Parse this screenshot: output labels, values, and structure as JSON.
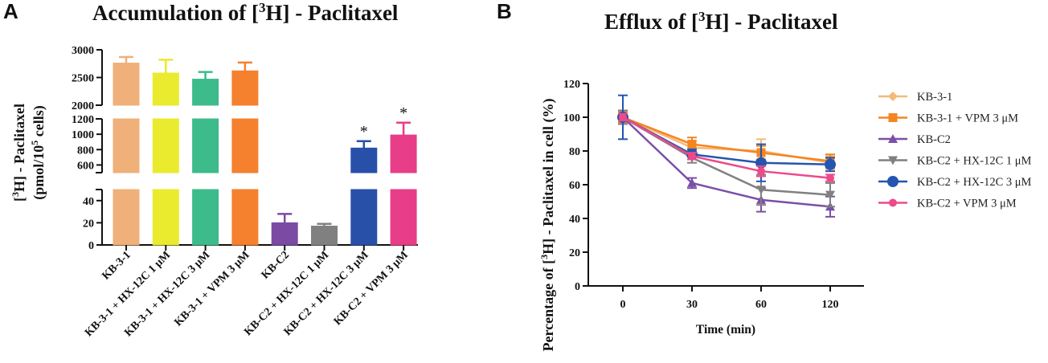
{
  "panel_a": {
    "letter": "A",
    "title_pre": "Accumulation of [",
    "title_sup": "3",
    "title_post": "H] - Paclitaxel"
  },
  "panel_b": {
    "letter": "B",
    "title_pre": "Efflux of [",
    "title_sup": "3",
    "title_post": "H] - Paclitaxel"
  },
  "chart_data": [
    {
      "type": "bar",
      "title": "Accumulation of [3H] - Paclitaxel",
      "ylabel_parts": [
        "[",
        "3",
        "H] - Paclitaxel",
        "(pmol/10",
        "5",
        " cells)"
      ],
      "y_segments": [
        {
          "range": [
            0,
            50
          ],
          "ticks": [
            0,
            20,
            40
          ]
        },
        {
          "range": [
            500,
            1200
          ],
          "ticks": [
            600,
            800,
            1000,
            1200
          ]
        },
        {
          "range": [
            2000,
            3000
          ],
          "ticks": [
            2000,
            2500,
            3000
          ]
        }
      ],
      "categories": [
        "KB-3-1",
        "KB-3-1 + HX-12C 1 μM",
        "KB-3-1 + HX-12C 3 μM",
        "KB-3-1 + VPM 3 μM",
        "KB-C2",
        "KB-C2 + HX-12C 1 μM",
        "KB-C2 + HX-12C 3 μM",
        "KB-C2 + VPM 3 μM"
      ],
      "values": [
        2760,
        2580,
        2470,
        2620,
        20,
        17,
        820,
        990
      ],
      "errors": [
        110,
        240,
        130,
        150,
        8,
        2,
        90,
        160
      ],
      "colors": [
        "#f0b07a",
        "#eaea2e",
        "#3dbb8b",
        "#f5802e",
        "#7b4ba3",
        "#808080",
        "#2850a8",
        "#e83d88"
      ],
      "significance": [
        "",
        "",
        "",
        "",
        "",
        "",
        "*",
        "*"
      ]
    },
    {
      "type": "line",
      "title": "Efflux of [3H] - Paclitaxel",
      "xlabel": "Time (min)",
      "ylabel_parts": [
        "Percentage of [",
        "3",
        "H] - Paclitaxel in cell (%)"
      ],
      "x": [
        0,
        30,
        60,
        120
      ],
      "ylim": [
        0,
        120
      ],
      "yticks": [
        0,
        20,
        40,
        60,
        80,
        100,
        120
      ],
      "series": [
        {
          "name": "KB-3-1",
          "values": [
            100,
            82,
            80,
            73
          ],
          "errors": [
            4,
            4,
            7,
            4
          ],
          "color": "#f5b97a",
          "marker": "diamond"
        },
        {
          "name": "KB-3-1 + VPM 3 μM",
          "values": [
            100,
            84,
            79,
            74
          ],
          "errors": [
            3,
            4,
            4,
            4
          ],
          "color": "#f5851f",
          "marker": "square"
        },
        {
          "name": "KB-C2",
          "values": [
            100,
            61,
            51,
            47
          ],
          "errors": [
            4,
            3,
            7,
            6
          ],
          "color": "#7a4fa8",
          "marker": "triangle-up"
        },
        {
          "name": "KB-C2 + HX-12C 1 μM",
          "values": [
            100,
            76,
            57,
            54
          ],
          "errors": [
            4,
            3,
            9,
            7
          ],
          "color": "#808080",
          "marker": "triangle-down"
        },
        {
          "name": "KB-C2 + HX-12C 3 μM",
          "values": [
            100,
            78,
            73,
            72
          ],
          "errors": [
            13,
            3,
            11,
            4
          ],
          "color": "#2455b0",
          "marker": "circle-large"
        },
        {
          "name": "KB-C2 + VPM 3 μM",
          "values": [
            100,
            77,
            68,
            64
          ],
          "errors": [
            2,
            2,
            3,
            2
          ],
          "color": "#ec4a8a",
          "marker": "circle"
        }
      ]
    }
  ]
}
